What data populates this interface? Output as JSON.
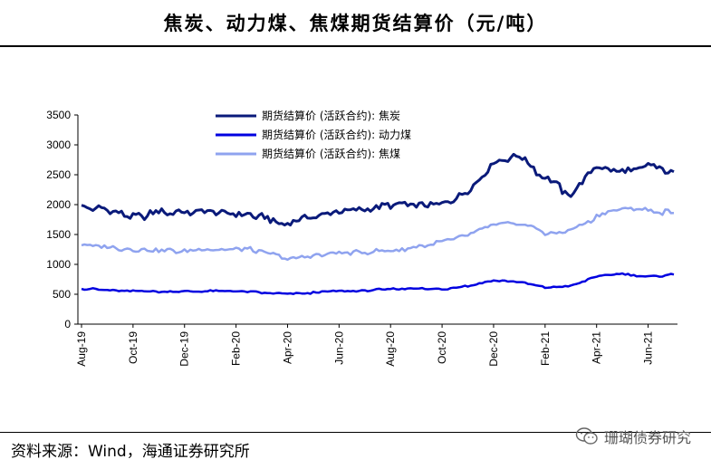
{
  "title": "焦炭、动力煤、焦煤期货结算价（元/吨）",
  "source": "资料来源：Wind，海通证券研究所",
  "watermark": "珊瑚债券研究",
  "chart_data": {
    "type": "line",
    "title": "焦炭、动力煤、焦煤期货结算价（元/吨）",
    "xlabel": "",
    "ylabel": "",
    "ylim": [
      0,
      3500
    ],
    "yticks": [
      0,
      500,
      1000,
      1500,
      2000,
      2500,
      3000,
      3500
    ],
    "x": [
      "2019-08",
      "2019-09",
      "2019-10",
      "2019-11",
      "2019-12",
      "2020-01",
      "2020-02",
      "2020-03",
      "2020-04",
      "2020-05",
      "2020-06",
      "2020-07",
      "2020-08",
      "2020-09",
      "2020-10",
      "2020-11",
      "2020-12",
      "2021-01",
      "2021-02",
      "2021-03",
      "2021-04",
      "2021-05",
      "2021-06",
      "2021-07"
    ],
    "xticks": [
      "Aug-19",
      "Oct-19",
      "Dec-19",
      "Feb-20",
      "Apr-20",
      "Jun-20",
      "Aug-20",
      "Oct-20",
      "Dec-20",
      "Feb-21",
      "Apr-21",
      "Jun-21"
    ],
    "legend_position": "top-center",
    "series": [
      {
        "name": "期货结算价 (活跃合约): 焦炭",
        "color": "#0a1a7a",
        "width": 3,
        "values": [
          1990,
          1900,
          1790,
          1860,
          1880,
          1870,
          1820,
          1800,
          1680,
          1800,
          1920,
          1920,
          1990,
          2000,
          2000,
          2250,
          2720,
          2800,
          2450,
          2150,
          2650,
          2550,
          2650,
          2550
        ]
      },
      {
        "name": "期货结算价 (活跃合约): 动力煤",
        "color": "#0000e0",
        "width": 2.5,
        "values": [
          590,
          575,
          555,
          545,
          550,
          555,
          545,
          525,
          500,
          525,
          550,
          560,
          590,
          600,
          580,
          640,
          730,
          700,
          610,
          640,
          800,
          840,
          790,
          830
        ]
      },
      {
        "name": "期货结算价 (活跃合约): 焦煤",
        "color": "#8fa3ef",
        "width": 2.5,
        "values": [
          1320,
          1300,
          1250,
          1240,
          1210,
          1250,
          1270,
          1230,
          1080,
          1150,
          1190,
          1200,
          1220,
          1290,
          1370,
          1470,
          1650,
          1700,
          1520,
          1560,
          1800,
          1950,
          1900,
          1860
        ]
      }
    ]
  }
}
